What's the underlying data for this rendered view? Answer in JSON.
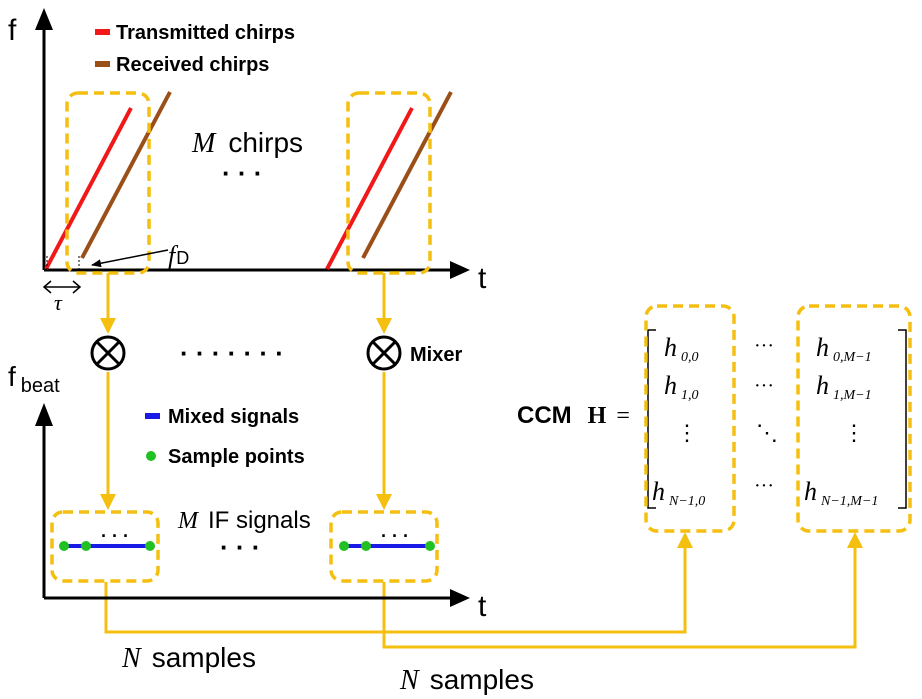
{
  "colors": {
    "transmitted": "#f01818",
    "received": "#9b4f18",
    "mixed": "#1a1ae6",
    "sample": "#22c022",
    "highlight": "#f5bf10",
    "ink": "#000000"
  },
  "top_plot": {
    "y_axis_label": "f",
    "x_axis_label": "t",
    "legend": [
      {
        "name": "transmitted",
        "label": "Transmitted chirps"
      },
      {
        "name": "received",
        "label": "Received chirps"
      }
    ],
    "chirps_m": "M",
    "chirps_label": "chirps",
    "ellipsis": "· · ·",
    "fd_f": "f",
    "fd_sub": "D",
    "tau": "τ"
  },
  "mixers": {
    "symbol": "⊗",
    "dots": "· · · · · · ·",
    "label": "Mixer"
  },
  "bottom_plot": {
    "y_axis_label": "f",
    "y_axis_sub": "beat",
    "x_axis_label": "t",
    "legend": [
      {
        "name": "mixed",
        "label": "Mixed signals"
      },
      {
        "name": "sample",
        "label": "Sample points"
      }
    ],
    "if_m": "M",
    "if_label": "IF signals",
    "ellipsis": "· · ·",
    "segment_dots": "· · ·"
  },
  "samples": {
    "n": "N",
    "label": "samples"
  },
  "ccm": {
    "label": "CCM",
    "symbol": "H",
    "equals": "=",
    "col0": [
      {
        "base": "h",
        "sub": "0,0"
      },
      {
        "base": "h",
        "sub": "1,0"
      },
      {
        "base": "⋮",
        "sub": ""
      },
      {
        "base": "h",
        "sub": "N−1,0"
      }
    ],
    "col_mid": [
      "···",
      "···",
      "⋱",
      "···"
    ],
    "col_last": [
      {
        "base": "h",
        "sub": "0,M−1"
      },
      {
        "base": "h",
        "sub": "1,M−1"
      },
      {
        "base": "⋮",
        "sub": ""
      },
      {
        "base": "h",
        "sub": "N−1,M−1"
      }
    ]
  }
}
